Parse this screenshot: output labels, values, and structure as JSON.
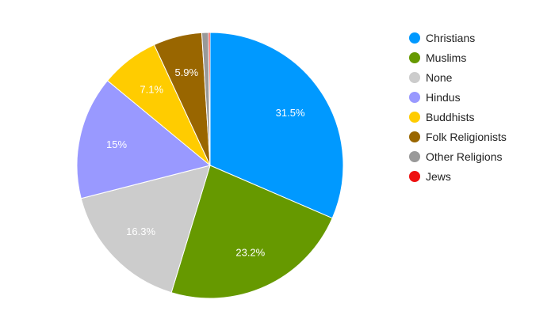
{
  "chart_data": {
    "type": "pie",
    "title": "",
    "legend_position": "right",
    "start_angle_deg": 0,
    "direction": "clockwise",
    "slices": [
      {
        "name": "Christians",
        "value": 31.5,
        "label": "31.5%",
        "color": "#0099ff"
      },
      {
        "name": "Muslims",
        "value": 23.2,
        "label": "23.2%",
        "color": "#669900"
      },
      {
        "name": "None",
        "value": 16.3,
        "label": "16.3%",
        "color": "#cccccc"
      },
      {
        "name": "Hindus",
        "value": 15.0,
        "label": "15%",
        "color": "#9999ff"
      },
      {
        "name": "Buddhists",
        "value": 7.1,
        "label": "7.1%",
        "color": "#ffcc00"
      },
      {
        "name": "Folk Religionists",
        "value": 5.9,
        "label": "5.9%",
        "color": "#996600"
      },
      {
        "name": "Other Religions",
        "value": 0.8,
        "label": "",
        "color": "#999999"
      },
      {
        "name": "Jews",
        "value": 0.2,
        "label": "",
        "color": "#ee1111"
      }
    ]
  }
}
